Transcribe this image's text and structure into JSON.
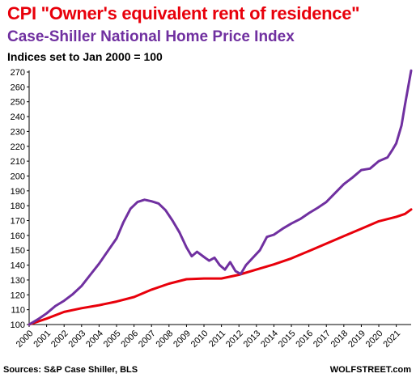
{
  "header": {
    "title": "CPI \"Owner's equivalent rent of residence\"",
    "subtitle": "Case-Shiller  National  Home Price Index",
    "note": "Indices set to Jan 2000 = 100"
  },
  "footer": {
    "source": "Sources: S&P Case Shiller, BLS",
    "brand": "WOLFSTREET.com"
  },
  "chart_data": {
    "type": "line",
    "xlabel": "",
    "ylabel": "",
    "title": "CPI \"Owner's equivalent rent of residence\"",
    "ylim": [
      100,
      270
    ],
    "xlim": [
      2000,
      2021.85
    ],
    "y_ticks": [
      100,
      110,
      120,
      130,
      140,
      150,
      160,
      170,
      180,
      190,
      200,
      210,
      220,
      230,
      240,
      250,
      260,
      270
    ],
    "x_ticks": [
      "2000",
      "2001",
      "2002",
      "2003",
      "2004",
      "2005",
      "2006",
      "2007",
      "2008",
      "2009",
      "2010",
      "2011",
      "2012",
      "2013",
      "2014",
      "2015",
      "2016",
      "2017",
      "2018",
      "2019",
      "2020",
      "2021"
    ],
    "grid": false,
    "legend": "none",
    "series": [
      {
        "name": "CPI \"Owner's equivalent rent of residence\"",
        "color": "#e8000b",
        "x": [
          2000,
          2001,
          2002,
          2003,
          2004,
          2005,
          2006,
          2007,
          2008,
          2009,
          2010,
          2011,
          2012,
          2013,
          2014,
          2015,
          2016,
          2017,
          2018,
          2019,
          2020,
          2021,
          2021.5,
          2021.85
        ],
        "y": [
          100,
          104,
          108.5,
          111,
          113,
          115.5,
          118.5,
          123.5,
          127.5,
          130.5,
          131,
          131,
          133.5,
          137,
          140.5,
          144.5,
          149.5,
          154.5,
          159.5,
          164.5,
          169.5,
          172.5,
          174.5,
          177.5
        ]
      },
      {
        "name": "Case-Shiller  National  Home Price Index",
        "color": "#7030a0",
        "x": [
          2000,
          2000.5,
          2001,
          2001.5,
          2002,
          2002.5,
          2003,
          2003.5,
          2004,
          2004.5,
          2005,
          2005.4,
          2005.8,
          2006.2,
          2006.6,
          2007,
          2007.4,
          2007.8,
          2008.2,
          2008.6,
          2009,
          2009.3,
          2009.6,
          2010,
          2010.3,
          2010.6,
          2010.9,
          2011.2,
          2011.5,
          2011.8,
          2012.1,
          2012.4,
          2012.8,
          2013.2,
          2013.6,
          2014,
          2014.5,
          2015,
          2015.5,
          2016,
          2016.5,
          2017,
          2017.5,
          2018,
          2018.5,
          2019,
          2019.5,
          2020,
          2020.5,
          2020.8,
          2021,
          2021.3,
          2021.5,
          2021.85
        ],
        "y": [
          100,
          103.5,
          107.5,
          112.5,
          116,
          120.5,
          126,
          133.5,
          141,
          149.5,
          158,
          169,
          178,
          182.5,
          184,
          183,
          181.5,
          177,
          170,
          162,
          152,
          146,
          149,
          145.5,
          143,
          145,
          140,
          137,
          142,
          136,
          134,
          140,
          145,
          150,
          159,
          160.5,
          164.5,
          168,
          171,
          175,
          178.5,
          182.5,
          188.5,
          194.5,
          199,
          204,
          205,
          210,
          212.5,
          218,
          222,
          234,
          248,
          271
        ]
      }
    ]
  }
}
